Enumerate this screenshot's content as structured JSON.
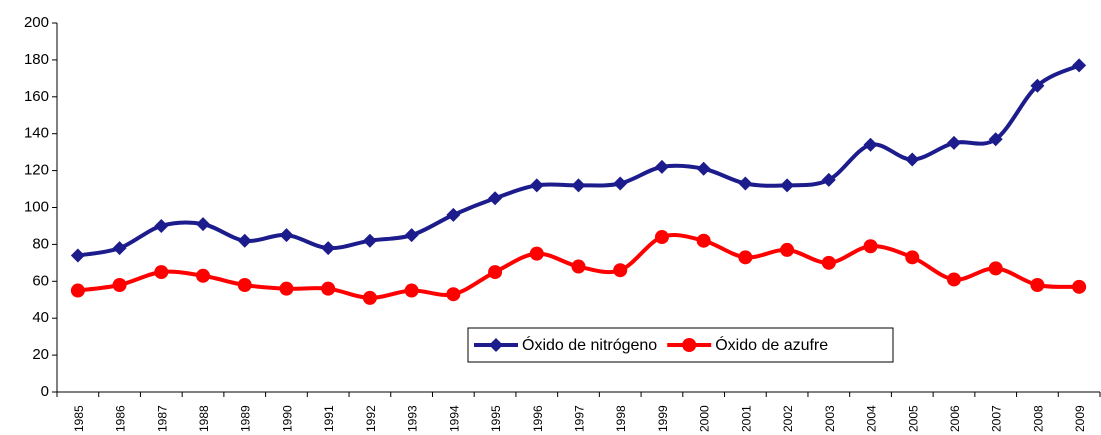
{
  "chart_data": {
    "type": "line",
    "categories": [
      "1985",
      "1986",
      "1987",
      "1988",
      "1989",
      "1990",
      "1991",
      "1992",
      "1993",
      "1994",
      "1995",
      "1996",
      "1997",
      "1998",
      "1999",
      "2000",
      "2001",
      "2002",
      "2003",
      "2004",
      "2005",
      "2006",
      "2007",
      "2008",
      "2009"
    ],
    "series": [
      {
        "name": "Óxido de nitrógeno",
        "color": "#1c1c8c",
        "marker": "diamond",
        "values": [
          74,
          78,
          90,
          91,
          82,
          85,
          78,
          82,
          85,
          96,
          105,
          112,
          112,
          113,
          122,
          121,
          113,
          112,
          115,
          134,
          126,
          135,
          137,
          166,
          177
        ]
      },
      {
        "name": "Óxido de azufre",
        "color": "#ff0000",
        "marker": "circle",
        "values": [
          55,
          58,
          65,
          63,
          58,
          56,
          56,
          51,
          55,
          53,
          65,
          75,
          68,
          66,
          84,
          82,
          73,
          77,
          70,
          79,
          73,
          61,
          67,
          58,
          57
        ]
      }
    ],
    "ylim": [
      0,
      200
    ],
    "yticks": [
      0,
      20,
      40,
      60,
      80,
      100,
      120,
      140,
      160,
      180,
      200
    ],
    "grid": false,
    "legend": "bottom"
  }
}
